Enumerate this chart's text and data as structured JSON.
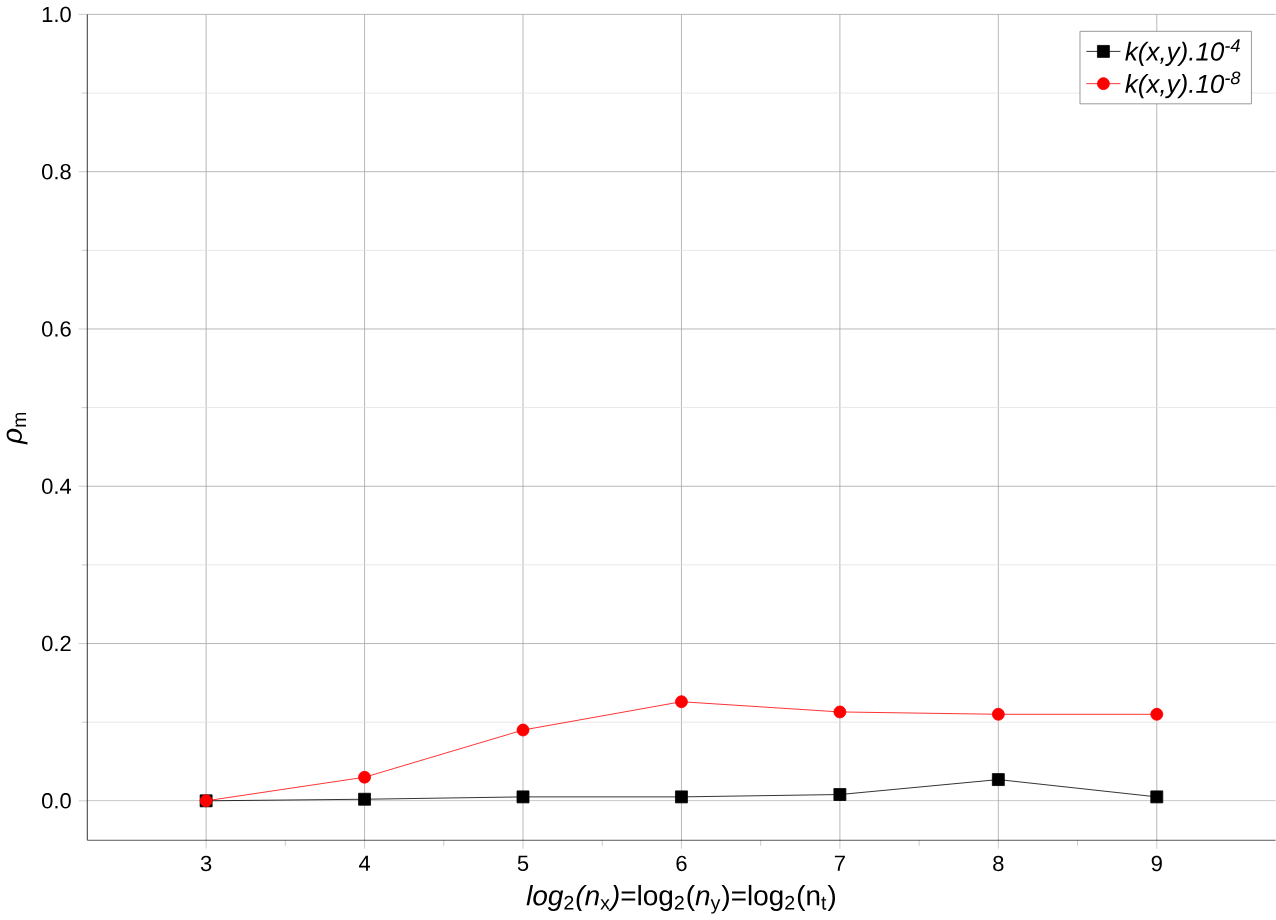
{
  "chart_data": {
    "type": "line",
    "xlabel": "*log*$_{2}$*(n*$_{x}$*)*=log$_{2}$(*n*$_{y}$)=log$_{2}$(n$_{t}$)",
    "ylabel": "*ρ*$_{m}$",
    "x": [
      3,
      4,
      5,
      6,
      7,
      8,
      9
    ],
    "series": [
      {
        "name": "*k(x,y).10*$^{-4}$",
        "color": "#000000",
        "marker": "square",
        "values": [
          0.0,
          0.002,
          0.005,
          0.005,
          0.008,
          0.027,
          0.005
        ]
      },
      {
        "name": "*k(x,y).10*$^{-8}$",
        "color": "#ff0000",
        "marker": "circle",
        "values": [
          0.0,
          0.03,
          0.09,
          0.126,
          0.113,
          0.11,
          0.11
        ]
      }
    ],
    "xlim": [
      2.25,
      9.75
    ],
    "ylim": [
      -0.05,
      1.0
    ],
    "xticks": [
      3,
      4,
      5,
      6,
      7,
      8,
      9
    ],
    "yticks": [
      {
        "value": 0.0,
        "label": "0.0"
      },
      {
        "value": 0.2,
        "label": "0.2"
      },
      {
        "value": 0.4,
        "label": "0.4"
      },
      {
        "value": 0.6,
        "label": "0.6"
      },
      {
        "value": 0.8,
        "label": "0.8"
      },
      {
        "value": 1.0,
        "label": "1.0"
      }
    ],
    "grid": true,
    "legend": "top right",
    "line_style": "solid"
  }
}
